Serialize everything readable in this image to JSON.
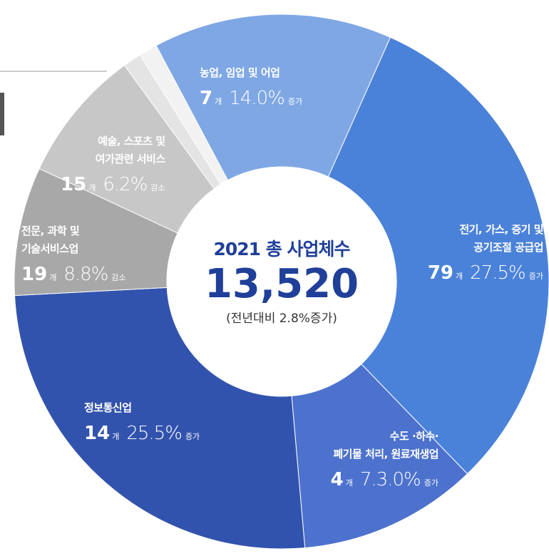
{
  "center": {
    "title": "2021 총 사업체수",
    "total": "13,520",
    "note": "(전년대비 2.8%증가)"
  },
  "segments": [
    {
      "name": [
        "농업, 임업 및 어업"
      ],
      "count": "7",
      "unit": "개",
      "rate": "14.0%",
      "change": "증가"
    },
    {
      "name": [
        "전기, 가스, 증기 및",
        "공기조절 공급업"
      ],
      "count": "79",
      "unit": "개",
      "rate": "27.5%",
      "change": "증가"
    },
    {
      "name": [
        "수도 ·하수·",
        "폐기물 처리, 원료재생업"
      ],
      "count": "4",
      "unit": "개",
      "rate": "7.3.0%",
      "change": "증가"
    },
    {
      "name": [
        "정보통신업"
      ],
      "count": "14",
      "unit": "개",
      "rate": "25.5%",
      "change": "증가"
    },
    {
      "name": [
        "전문, 과학 및",
        "기술서비스업"
      ],
      "count": "19",
      "unit": "개",
      "rate": "8.8%",
      "change": "감소"
    },
    {
      "name": [
        "예술, 스포츠 및",
        "여가관련 서비스"
      ],
      "count": "15",
      "unit": "개",
      "rate": "6.2%",
      "change": "감소"
    }
  ]
}
